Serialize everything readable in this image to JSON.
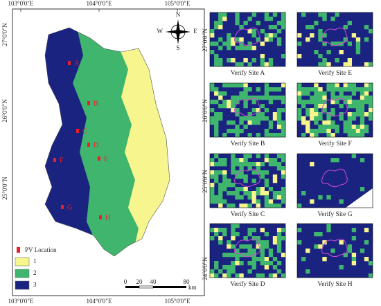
{
  "map": {
    "top_lon_labels": [
      "103°0'0\"E",
      "104°0'0\"E",
      "105°0'0\"E"
    ],
    "bottom_lon_labels": [
      "103°0'0\"E",
      "104°0'0\"E",
      "105°0'0\"E"
    ],
    "left_lat_labels": [
      "27°0'0\"N",
      "26°0'0\"N",
      "25°0'0\"N"
    ],
    "compass": {
      "n": "N",
      "e": "E",
      "s": "S",
      "w": "W"
    },
    "legend": {
      "pv_location": "PV Location",
      "classes": [
        {
          "label": "1",
          "color": "#f7f58e"
        },
        {
          "label": "2",
          "color": "#3fb56e"
        },
        {
          "label": "3",
          "color": "#1a2380"
        }
      ]
    },
    "scale_bar": {
      "labels": [
        "0",
        "20",
        "40",
        "80"
      ],
      "unit": "km"
    },
    "sites": [
      "A",
      "B",
      "C",
      "D",
      "E",
      "F",
      "G",
      "H"
    ]
  },
  "panels": [
    "Verify Site A",
    "Verify Site E",
    "Verify Site B",
    "Verify Site F",
    "Verify Site C",
    "Verify Site G",
    "Verify Site D",
    "Verify Site H"
  ],
  "right_lat_labels": [
    "27°0'0\"N",
    "26°0'0\"N",
    "25°0'0\"N",
    "24°0'0\"N"
  ]
}
